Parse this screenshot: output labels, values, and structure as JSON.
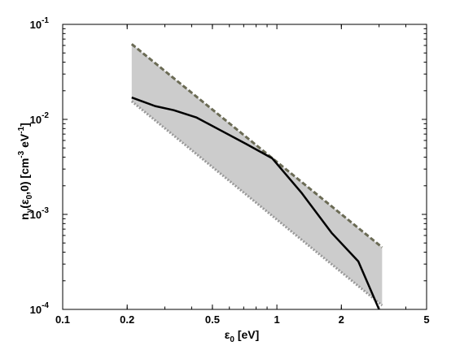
{
  "chart_data": {
    "type": "area",
    "xscale": "log",
    "yscale": "log",
    "xlim": [
      0.1,
      5
    ],
    "ylim": [
      0.0001,
      0.1
    ],
    "grid": false,
    "xlabel": {
      "base": "ε",
      "sub": "0",
      "unit": " [eV]"
    },
    "ylabel": {
      "p1": "n",
      "sub1": "γ",
      "p2": "(ε",
      "sub2": "0",
      "p3": ",0) [cm",
      "sup1": "-3",
      "p4": " eV",
      "sup2": "-1",
      "p5": "]"
    },
    "x_ticks": [
      {
        "value": 0.1,
        "label": "0.1"
      },
      {
        "value": 0.2,
        "label": "0.2"
      },
      {
        "value": 0.5,
        "label": "0.5"
      },
      {
        "value": 1,
        "label": "1"
      },
      {
        "value": 2,
        "label": "2"
      },
      {
        "value": 5,
        "label": "5"
      }
    ],
    "y_ticks": [
      {
        "value": 0.0001,
        "base": "10",
        "exp": "-4"
      },
      {
        "value": 0.001,
        "base": "10",
        "exp": "-3"
      },
      {
        "value": 0.01,
        "base": "10",
        "exp": "-2"
      },
      {
        "value": 0.1,
        "base": "10",
        "exp": "-1"
      }
    ],
    "band": {
      "color": "#cccccc",
      "upper": {
        "x": [
          0.21,
          3.1
        ],
        "y": [
          0.062,
          0.00045
        ],
        "style": "dashed",
        "color": "#6b6b55"
      },
      "lower": {
        "x": [
          0.21,
          3.1
        ],
        "y": [
          0.0155,
          0.00011
        ],
        "style": "dotted",
        "color": "#999999"
      }
    },
    "series": [
      {
        "x": [
          0.21,
          0.27,
          0.33,
          0.42,
          0.55,
          0.72,
          0.95,
          1.3,
          1.8,
          2.4,
          3.0
        ],
        "y": [
          0.017,
          0.0138,
          0.0125,
          0.0105,
          0.0076,
          0.0055,
          0.0039,
          0.0017,
          0.00064,
          0.00032,
          0.0001
        ],
        "color": "#000000"
      }
    ]
  }
}
